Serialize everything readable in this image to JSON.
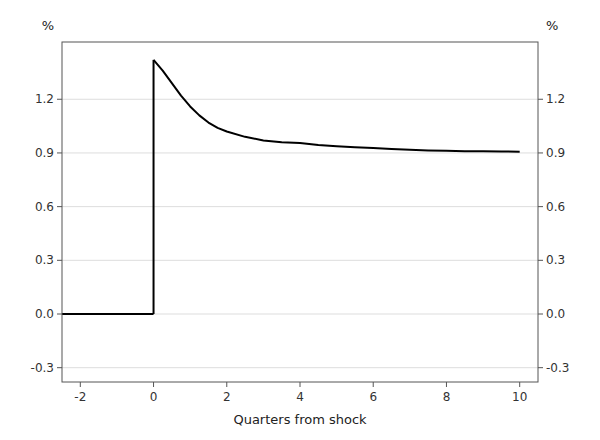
{
  "chart_data": {
    "type": "line",
    "title": "",
    "xlabel": "Quarters from shock",
    "ylabel": "%",
    "y2label": "%",
    "xlim": [
      -2.5,
      10.5
    ],
    "xticks": [
      -2,
      0,
      2,
      4,
      6,
      8,
      10
    ],
    "ylim": [
      -0.38,
      1.52
    ],
    "yticks": [
      -0.3,
      {
        "value": 0.0,
        "label": "0.0"
      },
      0.3,
      0.6,
      0.9,
      1.2
    ],
    "y2lim": [
      -0.38,
      1.52
    ],
    "y2ticks": [
      -0.3,
      {
        "value": 0.0,
        "label": "0.0"
      },
      0.3,
      0.6,
      0.9,
      1.2
    ],
    "grid": "y",
    "series": [
      {
        "color": "#000000",
        "x": [
          -2.5,
          0.0
        ],
        "values": [
          0.0,
          0.0
        ]
      },
      {
        "color": "#000000",
        "x": [
          0.0,
          0.0
        ],
        "values": [
          0.0,
          1.42
        ]
      },
      {
        "color": "#000000",
        "x": [
          0.0,
          0.25,
          0.5,
          0.75,
          1.0,
          1.25,
          1.5,
          1.75,
          2.0,
          2.5,
          3.0,
          3.5,
          4.0,
          4.5,
          5.0,
          5.5,
          6.0,
          6.5,
          7.0,
          7.5,
          8.0,
          8.5,
          9.0,
          9.5,
          10.0
        ],
        "values": [
          1.42,
          1.36,
          1.29,
          1.22,
          1.16,
          1.11,
          1.07,
          1.04,
          1.02,
          0.99,
          0.97,
          0.96,
          0.955,
          0.945,
          0.938,
          0.932,
          0.927,
          0.922,
          0.918,
          0.914,
          0.912,
          0.91,
          0.909,
          0.908,
          0.907
        ]
      }
    ]
  }
}
